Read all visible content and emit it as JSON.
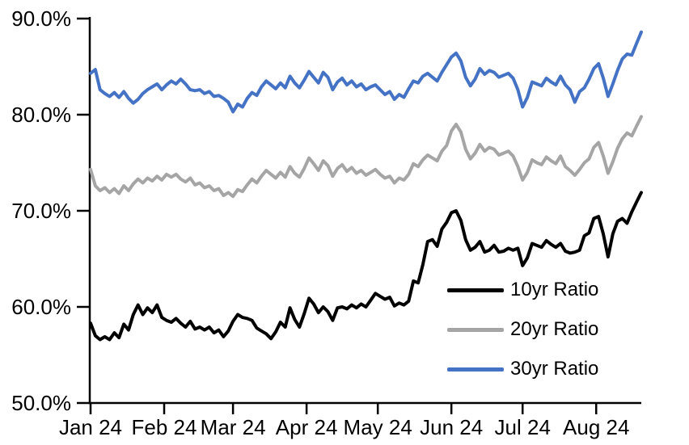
{
  "chart_data": {
    "type": "line",
    "title": "",
    "grid": false,
    "legend_position": "inside-lower-right",
    "x_axis": {
      "tick_labels": [
        "Jan 24",
        "Feb 24",
        "Mar 24",
        "Apr 24",
        "May 24",
        "Jun 24",
        "Jul 24",
        "Aug 24"
      ],
      "tick_days": [
        0,
        31,
        60,
        91,
        121,
        152,
        182,
        213
      ],
      "total_days": 232,
      "point_interval_days": 2
    },
    "y_axis": {
      "tick_labels": [
        "90.0%",
        "80.0%",
        "70.0%",
        "60.0%",
        "50.0%"
      ],
      "tick_values": [
        90,
        80,
        70,
        60,
        50
      ],
      "min": 50,
      "max": 90,
      "unit": "percent"
    },
    "axis_color": "#000000",
    "series": [
      {
        "name": "10yr Ratio",
        "color": "#000000",
        "values": [
          58.3,
          57.0,
          56.6,
          56.9,
          56.6,
          57.3,
          56.8,
          58.2,
          57.6,
          59.2,
          60.2,
          59.2,
          59.9,
          59.4,
          60.2,
          58.9,
          58.6,
          58.4,
          58.8,
          58.3,
          57.9,
          58.5,
          57.7,
          57.9,
          57.6,
          57.9,
          57.3,
          57.6,
          56.9,
          57.5,
          58.5,
          59.2,
          58.9,
          58.8,
          58.6,
          57.8,
          57.5,
          57.2,
          56.7,
          57.4,
          58.4,
          57.9,
          59.9,
          58.7,
          57.9,
          59.3,
          60.9,
          60.3,
          59.4,
          60.0,
          59.5,
          58.6,
          59.9,
          60.0,
          59.8,
          60.2,
          59.9,
          60.3,
          60.0,
          60.7,
          61.4,
          61.1,
          60.8,
          61.0,
          60.1,
          60.4,
          60.2,
          60.6,
          62.7,
          62.5,
          64.4,
          66.8,
          67.0,
          66.3,
          68.1,
          68.8,
          69.8,
          70.0,
          69.0,
          67.0,
          65.9,
          66.2,
          66.8,
          65.7,
          65.9,
          66.4,
          65.7,
          65.8,
          66.1,
          65.9,
          66.1,
          64.3,
          65.1,
          66.6,
          66.4,
          66.2,
          66.9,
          66.5,
          66.2,
          66.6,
          65.8,
          65.6,
          65.7,
          65.9,
          67.4,
          67.7,
          69.2,
          69.4,
          67.6,
          65.2,
          67.6,
          68.9,
          69.2,
          68.7,
          69.9,
          70.9,
          71.9
        ]
      },
      {
        "name": "20yr Ratio",
        "color": "#A5A5A5",
        "values": [
          74.3,
          72.6,
          72.1,
          72.4,
          71.9,
          72.3,
          71.8,
          72.6,
          72.1,
          72.8,
          73.3,
          72.9,
          73.4,
          73.1,
          73.6,
          73.2,
          73.8,
          73.5,
          73.8,
          73.3,
          73.0,
          73.4,
          72.7,
          72.9,
          72.4,
          72.6,
          72.1,
          72.3,
          71.6,
          71.9,
          71.5,
          72.2,
          72.0,
          72.7,
          73.3,
          72.9,
          73.6,
          74.2,
          73.8,
          73.4,
          74.0,
          73.5,
          74.6,
          73.9,
          73.5,
          74.4,
          75.5,
          74.9,
          74.2,
          75.2,
          74.7,
          73.6,
          74.4,
          74.8,
          74.1,
          74.5,
          73.9,
          74.2,
          73.7,
          74.0,
          74.3,
          73.8,
          73.4,
          73.6,
          72.9,
          73.4,
          73.2,
          73.8,
          74.9,
          74.6,
          75.3,
          75.8,
          75.5,
          75.2,
          76.2,
          76.8,
          78.3,
          79.0,
          78.2,
          76.4,
          75.4,
          76.0,
          76.9,
          76.2,
          76.6,
          76.4,
          75.8,
          76.0,
          76.2,
          75.7,
          74.6,
          73.2,
          74.0,
          75.3,
          75.0,
          74.8,
          75.6,
          75.2,
          74.9,
          75.7,
          74.6,
          74.2,
          73.7,
          74.3,
          75.0,
          75.4,
          76.6,
          77.1,
          75.7,
          73.9,
          75.1,
          76.5,
          77.5,
          78.1,
          77.8,
          78.8,
          79.8
        ]
      },
      {
        "name": "30yr Ratio",
        "color": "#4472C4",
        "values": [
          84.3,
          84.7,
          82.6,
          82.2,
          81.9,
          82.3,
          81.8,
          82.4,
          81.7,
          81.2,
          81.6,
          82.2,
          82.6,
          82.9,
          83.2,
          82.6,
          83.1,
          83.5,
          83.2,
          83.7,
          83.2,
          82.6,
          82.5,
          82.6,
          82.2,
          82.4,
          81.9,
          82.0,
          81.7,
          81.3,
          80.3,
          81.1,
          80.8,
          81.7,
          82.3,
          82.0,
          82.9,
          83.5,
          83.1,
          82.7,
          83.3,
          82.8,
          84.0,
          83.3,
          82.8,
          83.6,
          84.5,
          83.9,
          83.3,
          84.4,
          83.9,
          82.6,
          83.4,
          83.8,
          83.1,
          83.5,
          82.9,
          83.2,
          82.6,
          82.9,
          83.1,
          82.6,
          82.1,
          82.4,
          81.6,
          82.1,
          81.8,
          82.7,
          83.5,
          83.3,
          84.0,
          84.3,
          83.9,
          83.5,
          84.4,
          85.2,
          86.0,
          86.4,
          85.6,
          83.9,
          83.0,
          83.7,
          84.8,
          84.2,
          84.6,
          84.4,
          83.9,
          84.1,
          84.3,
          83.8,
          82.6,
          80.8,
          81.8,
          83.4,
          83.2,
          83.0,
          83.8,
          83.4,
          83.1,
          84.0,
          83.1,
          82.6,
          81.3,
          82.4,
          82.8,
          83.7,
          84.8,
          85.3,
          83.8,
          81.9,
          83.2,
          84.6,
          85.8,
          86.3,
          86.2,
          87.4,
          88.6
        ]
      }
    ]
  }
}
